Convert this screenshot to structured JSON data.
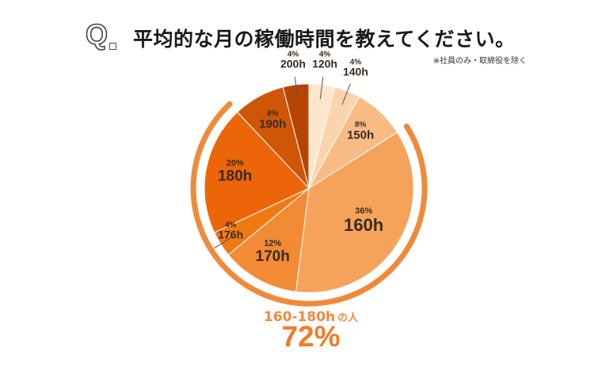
{
  "header": {
    "q_mark": "Q",
    "title": "平均的な月の稼働時間を教えてください。",
    "note": "※社員のみ・取締役を除く"
  },
  "chart_data": {
    "type": "pie",
    "title": "平均的な月の稼働時間を教えてください。",
    "slices": [
      {
        "label": "120h",
        "percent_label": "4%",
        "value": 4,
        "color": "#fde6cc"
      },
      {
        "label": "140h",
        "percent_label": "4%",
        "value": 4,
        "color": "#fbd3ad"
      },
      {
        "label": "150h",
        "percent_label": "8%",
        "value": 8,
        "color": "#f9bb85"
      },
      {
        "label": "160h",
        "percent_label": "36%",
        "value": 36,
        "color": "#f5a35b"
      },
      {
        "label": "170h",
        "percent_label": "12%",
        "value": 12,
        "color": "#f28a36"
      },
      {
        "label": "176h",
        "percent_label": "4%",
        "value": 4,
        "color": "#f07a12"
      },
      {
        "label": "180h",
        "percent_label": "20%",
        "value": 20,
        "color": "#ec6508"
      },
      {
        "label": "190h",
        "percent_label": "8%",
        "value": 8,
        "color": "#cf5606"
      },
      {
        "label": "200h",
        "percent_label": "4%",
        "value": 4,
        "color": "#b84404"
      }
    ],
    "highlight": {
      "range_label": "160-180h",
      "suffix": "の人",
      "percent": "72%",
      "covers": [
        "160h",
        "170h",
        "176h",
        "180h"
      ],
      "color": "#f08a3a"
    }
  }
}
